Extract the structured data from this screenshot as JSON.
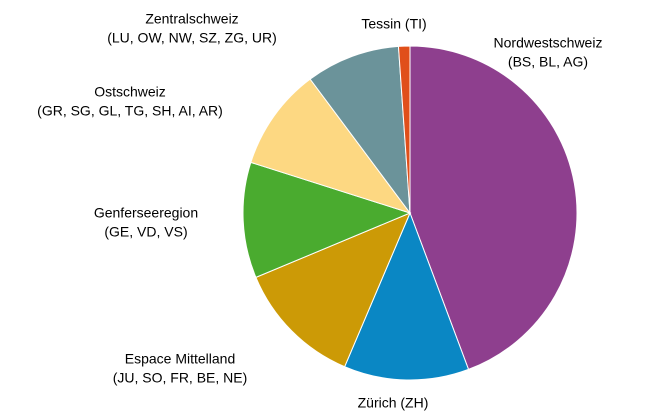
{
  "chart_data": {
    "type": "pie",
    "categories": [
      [
        "Nordwestschweiz",
        "(BS, BL, AG)"
      ],
      [
        "Zürich (ZH)"
      ],
      [
        "Espace Mittelland",
        "(JU, SO, FR, BE, NE)"
      ],
      [
        "Genferseeregion",
        "(GE, VD, VS)"
      ],
      [
        "Ostschweiz",
        "(GR, SG, GL, TG, SH, AI, AR)"
      ],
      [
        "Zentralschweiz",
        "(LU, OW, NW, SZ, ZG, UR)"
      ],
      [
        "Tessin (TI)"
      ]
    ],
    "values": [
      44.3,
      12.1,
      12.3,
      11.2,
      9.9,
      9.1,
      1.1
    ],
    "colors": [
      "#8e3f8e",
      "#0a87c4",
      "#cc9a06",
      "#4aab2f",
      "#fdd882",
      "#6b939a",
      "#e04f1a"
    ]
  }
}
